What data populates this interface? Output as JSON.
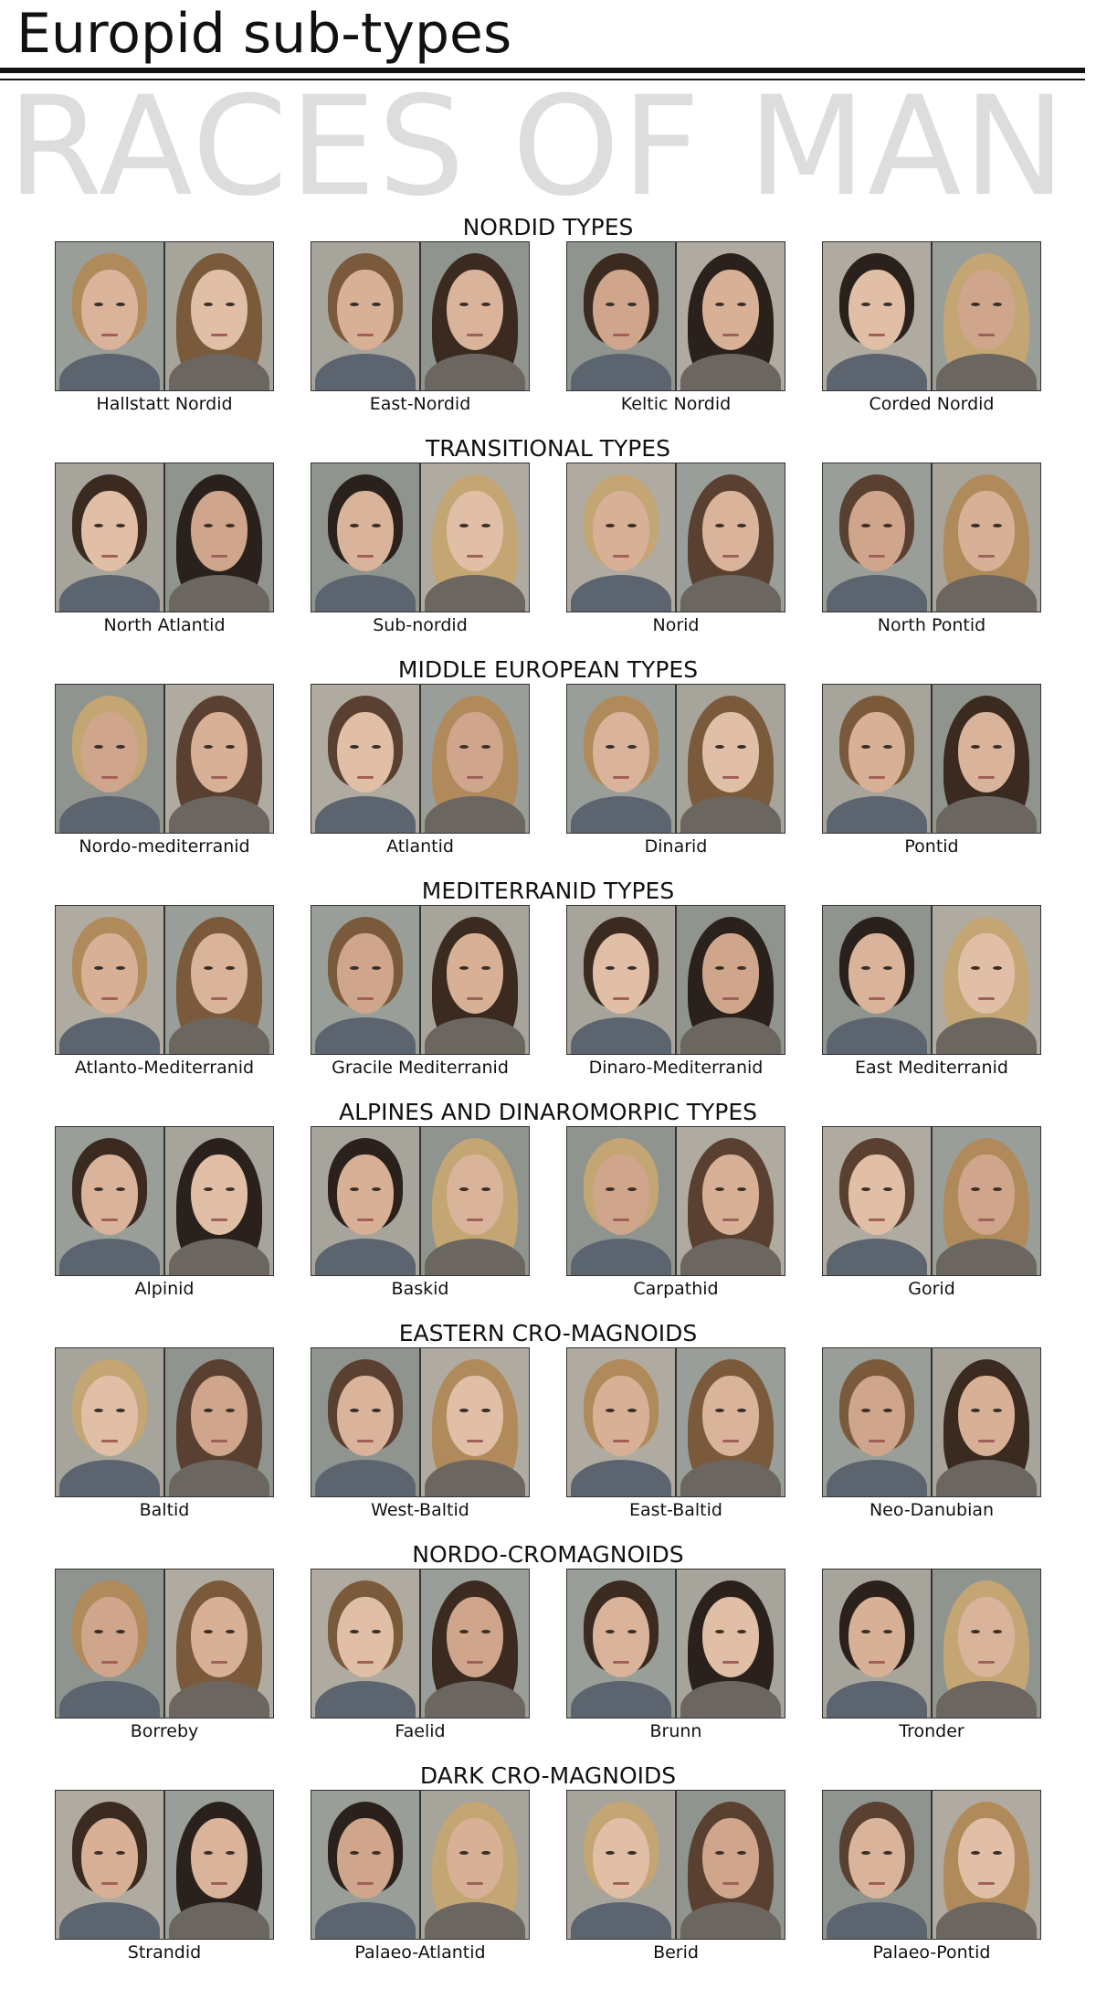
{
  "header": {
    "title": "Europid sub-types",
    "banner": "RACES OF MAN"
  },
  "sections": [
    {
      "title": "NORDID TYPES",
      "items": [
        "Hallstatt Nordid",
        "East-Nordid",
        "Keltic Nordid",
        "Corded Nordid"
      ]
    },
    {
      "title": "TRANSITIONAL TYPES",
      "items": [
        "North Atlantid",
        "Sub-nordid",
        "Norid",
        "North Pontid"
      ]
    },
    {
      "title": "MIDDLE EUROPEAN TYPES",
      "items": [
        "Nordo-mediterranid",
        "Atlantid",
        "Dinarid",
        "Pontid"
      ]
    },
    {
      "title": "MEDITERRANID TYPES",
      "items": [
        "Atlanto-Mediterranid",
        "Gracile Mediterranid",
        "Dinaro-Mediterranid",
        "East Mediterranid"
      ]
    },
    {
      "title": "ALPINES AND DINAROMORPIC TYPES",
      "items": [
        "Alpinid",
        "Baskid",
        "Carpathid",
        "Gorid"
      ]
    },
    {
      "title": "EASTERN CRO-MAGNOIDS",
      "items": [
        "Baltid",
        "West-Baltid",
        "East-Baltid",
        "Neo-Danubian"
      ]
    },
    {
      "title": "NORDO-CROMAGNOIDS",
      "items": [
        "Borreby",
        "Faelid",
        "Brunn",
        "Tronder"
      ]
    },
    {
      "title": "DARK CRO-MAGNOIDS",
      "items": [
        "Strandid",
        "Palaeo-Atlantid",
        "Berid",
        "Palaeo-Pontid"
      ]
    }
  ]
}
